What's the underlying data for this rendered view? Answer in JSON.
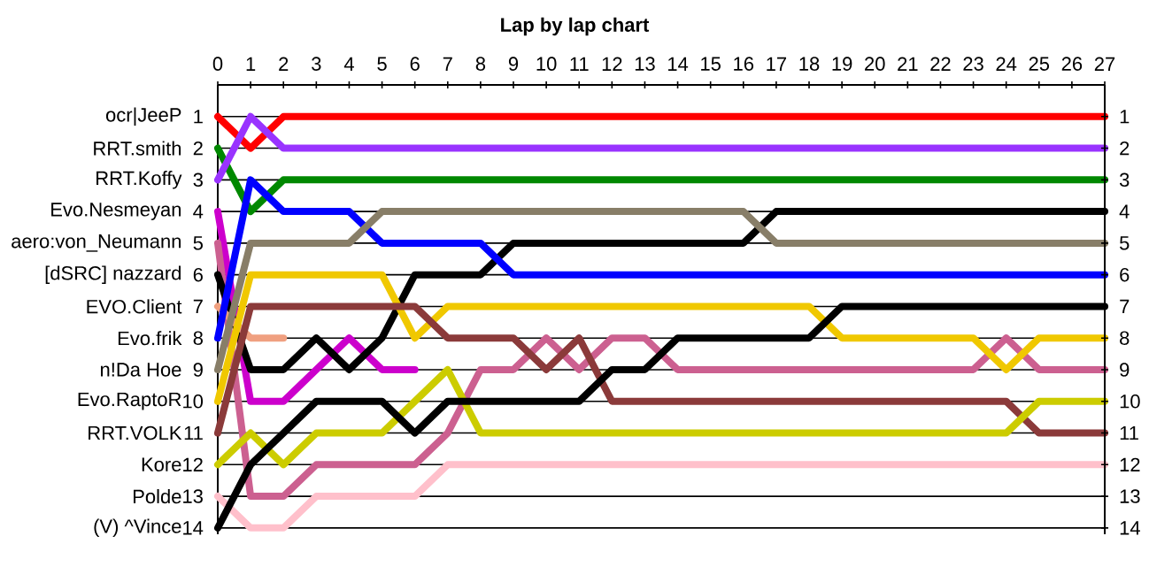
{
  "chart_data": {
    "type": "line",
    "title": "Lap by lap chart",
    "x": [
      0,
      1,
      2,
      3,
      4,
      5,
      6,
      7,
      8,
      9,
      10,
      11,
      12,
      13,
      14,
      15,
      16,
      17,
      18,
      19,
      20,
      21,
      22,
      23,
      24,
      25,
      26,
      27
    ],
    "xlim": [
      0,
      27
    ],
    "xticks": [
      0,
      1,
      2,
      3,
      4,
      5,
      6,
      7,
      8,
      9,
      10,
      11,
      12,
      13,
      14,
      15,
      16,
      17,
      18,
      19,
      20,
      21,
      22,
      23,
      24,
      25,
      26,
      27
    ],
    "ylim": [
      14.2,
      0
    ],
    "yticks": [
      1,
      2,
      3,
      4,
      5,
      6,
      7,
      8,
      9,
      10,
      11,
      12,
      13,
      14
    ],
    "y2lim": [
      14.2,
      0
    ],
    "y2ticks": [
      1,
      2,
      3,
      4,
      5,
      6,
      7,
      8,
      9,
      10,
      11,
      12,
      13,
      14
    ],
    "grid": "y",
    "series": [
      {
        "name": "ocr|JeeP",
        "color": "#ff0000",
        "values": [
          1,
          2,
          1,
          1,
          1,
          1,
          1,
          1,
          1,
          1,
          1,
          1,
          1,
          1,
          1,
          1,
          1,
          1,
          1,
          1,
          1,
          1,
          1,
          1,
          1,
          1,
          1,
          1
        ]
      },
      {
        "name": "RRT.smith",
        "color": "#008800",
        "values": [
          2,
          4,
          3,
          3,
          3,
          3,
          3,
          3,
          3,
          3,
          3,
          3,
          3,
          3,
          3,
          3,
          3,
          3,
          3,
          3,
          3,
          3,
          3,
          3,
          3,
          3,
          3,
          3
        ]
      },
      {
        "name": "RRT.Koffy",
        "color": "#9933ff",
        "values": [
          3,
          1,
          2,
          2,
          2,
          2,
          2,
          2,
          2,
          2,
          2,
          2,
          2,
          2,
          2,
          2,
          2,
          2,
          2,
          2,
          2,
          2,
          2,
          2,
          2,
          2,
          2,
          2
        ]
      },
      {
        "name": "Evo.Nesmeyan",
        "color": "#cc00cc",
        "values": [
          4,
          10,
          10,
          9,
          8,
          9,
          9,
          null,
          null,
          null,
          null,
          null,
          null,
          null,
          null,
          null,
          null,
          null,
          null,
          null,
          null,
          null,
          null,
          null,
          null,
          null,
          null,
          null
        ]
      },
      {
        "name": "aero:von_Neumann",
        "color": "#cc6090",
        "values": [
          5,
          13,
          13,
          12,
          12,
          12,
          12,
          11,
          9,
          9,
          8,
          9,
          8,
          8,
          9,
          9,
          9,
          9,
          9,
          9,
          9,
          9,
          9,
          9,
          8,
          9,
          9,
          9
        ]
      },
      {
        "name": "[dSRC] nazzard",
        "color": "#000000",
        "values": [
          6,
          9,
          9,
          8,
          9,
          8,
          6,
          6,
          6,
          5,
          5,
          5,
          5,
          5,
          5,
          5,
          5,
          4,
          4,
          4,
          4,
          4,
          4,
          4,
          4,
          4,
          4,
          4
        ]
      },
      {
        "name": "EVO.Client",
        "color": "#f0a080",
        "values": [
          7,
          8,
          8,
          null,
          null,
          null,
          null,
          null,
          null,
          null,
          null,
          null,
          null,
          null,
          null,
          null,
          null,
          null,
          null,
          null,
          null,
          null,
          null,
          null,
          null,
          null,
          null,
          null
        ]
      },
      {
        "name": "Evo.frik",
        "color": "#0000ff",
        "values": [
          8,
          3,
          4,
          4,
          4,
          5,
          5,
          5,
          5,
          6,
          6,
          6,
          6,
          6,
          6,
          6,
          6,
          6,
          6,
          6,
          6,
          6,
          6,
          6,
          6,
          6,
          6,
          6
        ]
      },
      {
        "name": "n!Da Hoe",
        "color": "#887e68",
        "values": [
          9,
          5,
          5,
          5,
          5,
          4,
          4,
          4,
          4,
          4,
          4,
          4,
          4,
          4,
          4,
          4,
          4,
          5,
          5,
          5,
          5,
          5,
          5,
          5,
          5,
          5,
          5,
          5
        ]
      },
      {
        "name": "Evo.RaptoR",
        "color": "#f0c800",
        "values": [
          10,
          6,
          6,
          6,
          6,
          6,
          8,
          7,
          7,
          7,
          7,
          7,
          7,
          7,
          7,
          7,
          7,
          7,
          7,
          8,
          8,
          8,
          8,
          8,
          9,
          8,
          8,
          8
        ]
      },
      {
        "name": "RRT.VOLK",
        "color": "#8b3a3a",
        "values": [
          11,
          7,
          7,
          7,
          7,
          7,
          7,
          8,
          8,
          8,
          9,
          8,
          10,
          10,
          10,
          10,
          10,
          10,
          10,
          10,
          10,
          10,
          10,
          10,
          10,
          11,
          11,
          11
        ]
      },
      {
        "name": "Kore",
        "color": "#cccc00",
        "values": [
          12,
          11,
          12,
          11,
          11,
          11,
          10,
          9,
          11,
          11,
          11,
          11,
          11,
          11,
          11,
          11,
          11,
          11,
          11,
          11,
          11,
          11,
          11,
          11,
          11,
          10,
          10,
          10
        ]
      },
      {
        "name": "Polde",
        "color": "#ffc0cb",
        "values": [
          13,
          14,
          14,
          13,
          13,
          13,
          13,
          12,
          12,
          12,
          12,
          12,
          12,
          12,
          12,
          12,
          12,
          12,
          12,
          12,
          12,
          12,
          12,
          12,
          12,
          12,
          12,
          12
        ]
      },
      {
        "name": "(V) ^Vince",
        "color": "#000000",
        "values": [
          14,
          12,
          11,
          10,
          10,
          10,
          11,
          10,
          10,
          10,
          10,
          10,
          9,
          9,
          8,
          8,
          8,
          8,
          8,
          7,
          7,
          7,
          7,
          7,
          7,
          7,
          7,
          7
        ]
      }
    ]
  }
}
